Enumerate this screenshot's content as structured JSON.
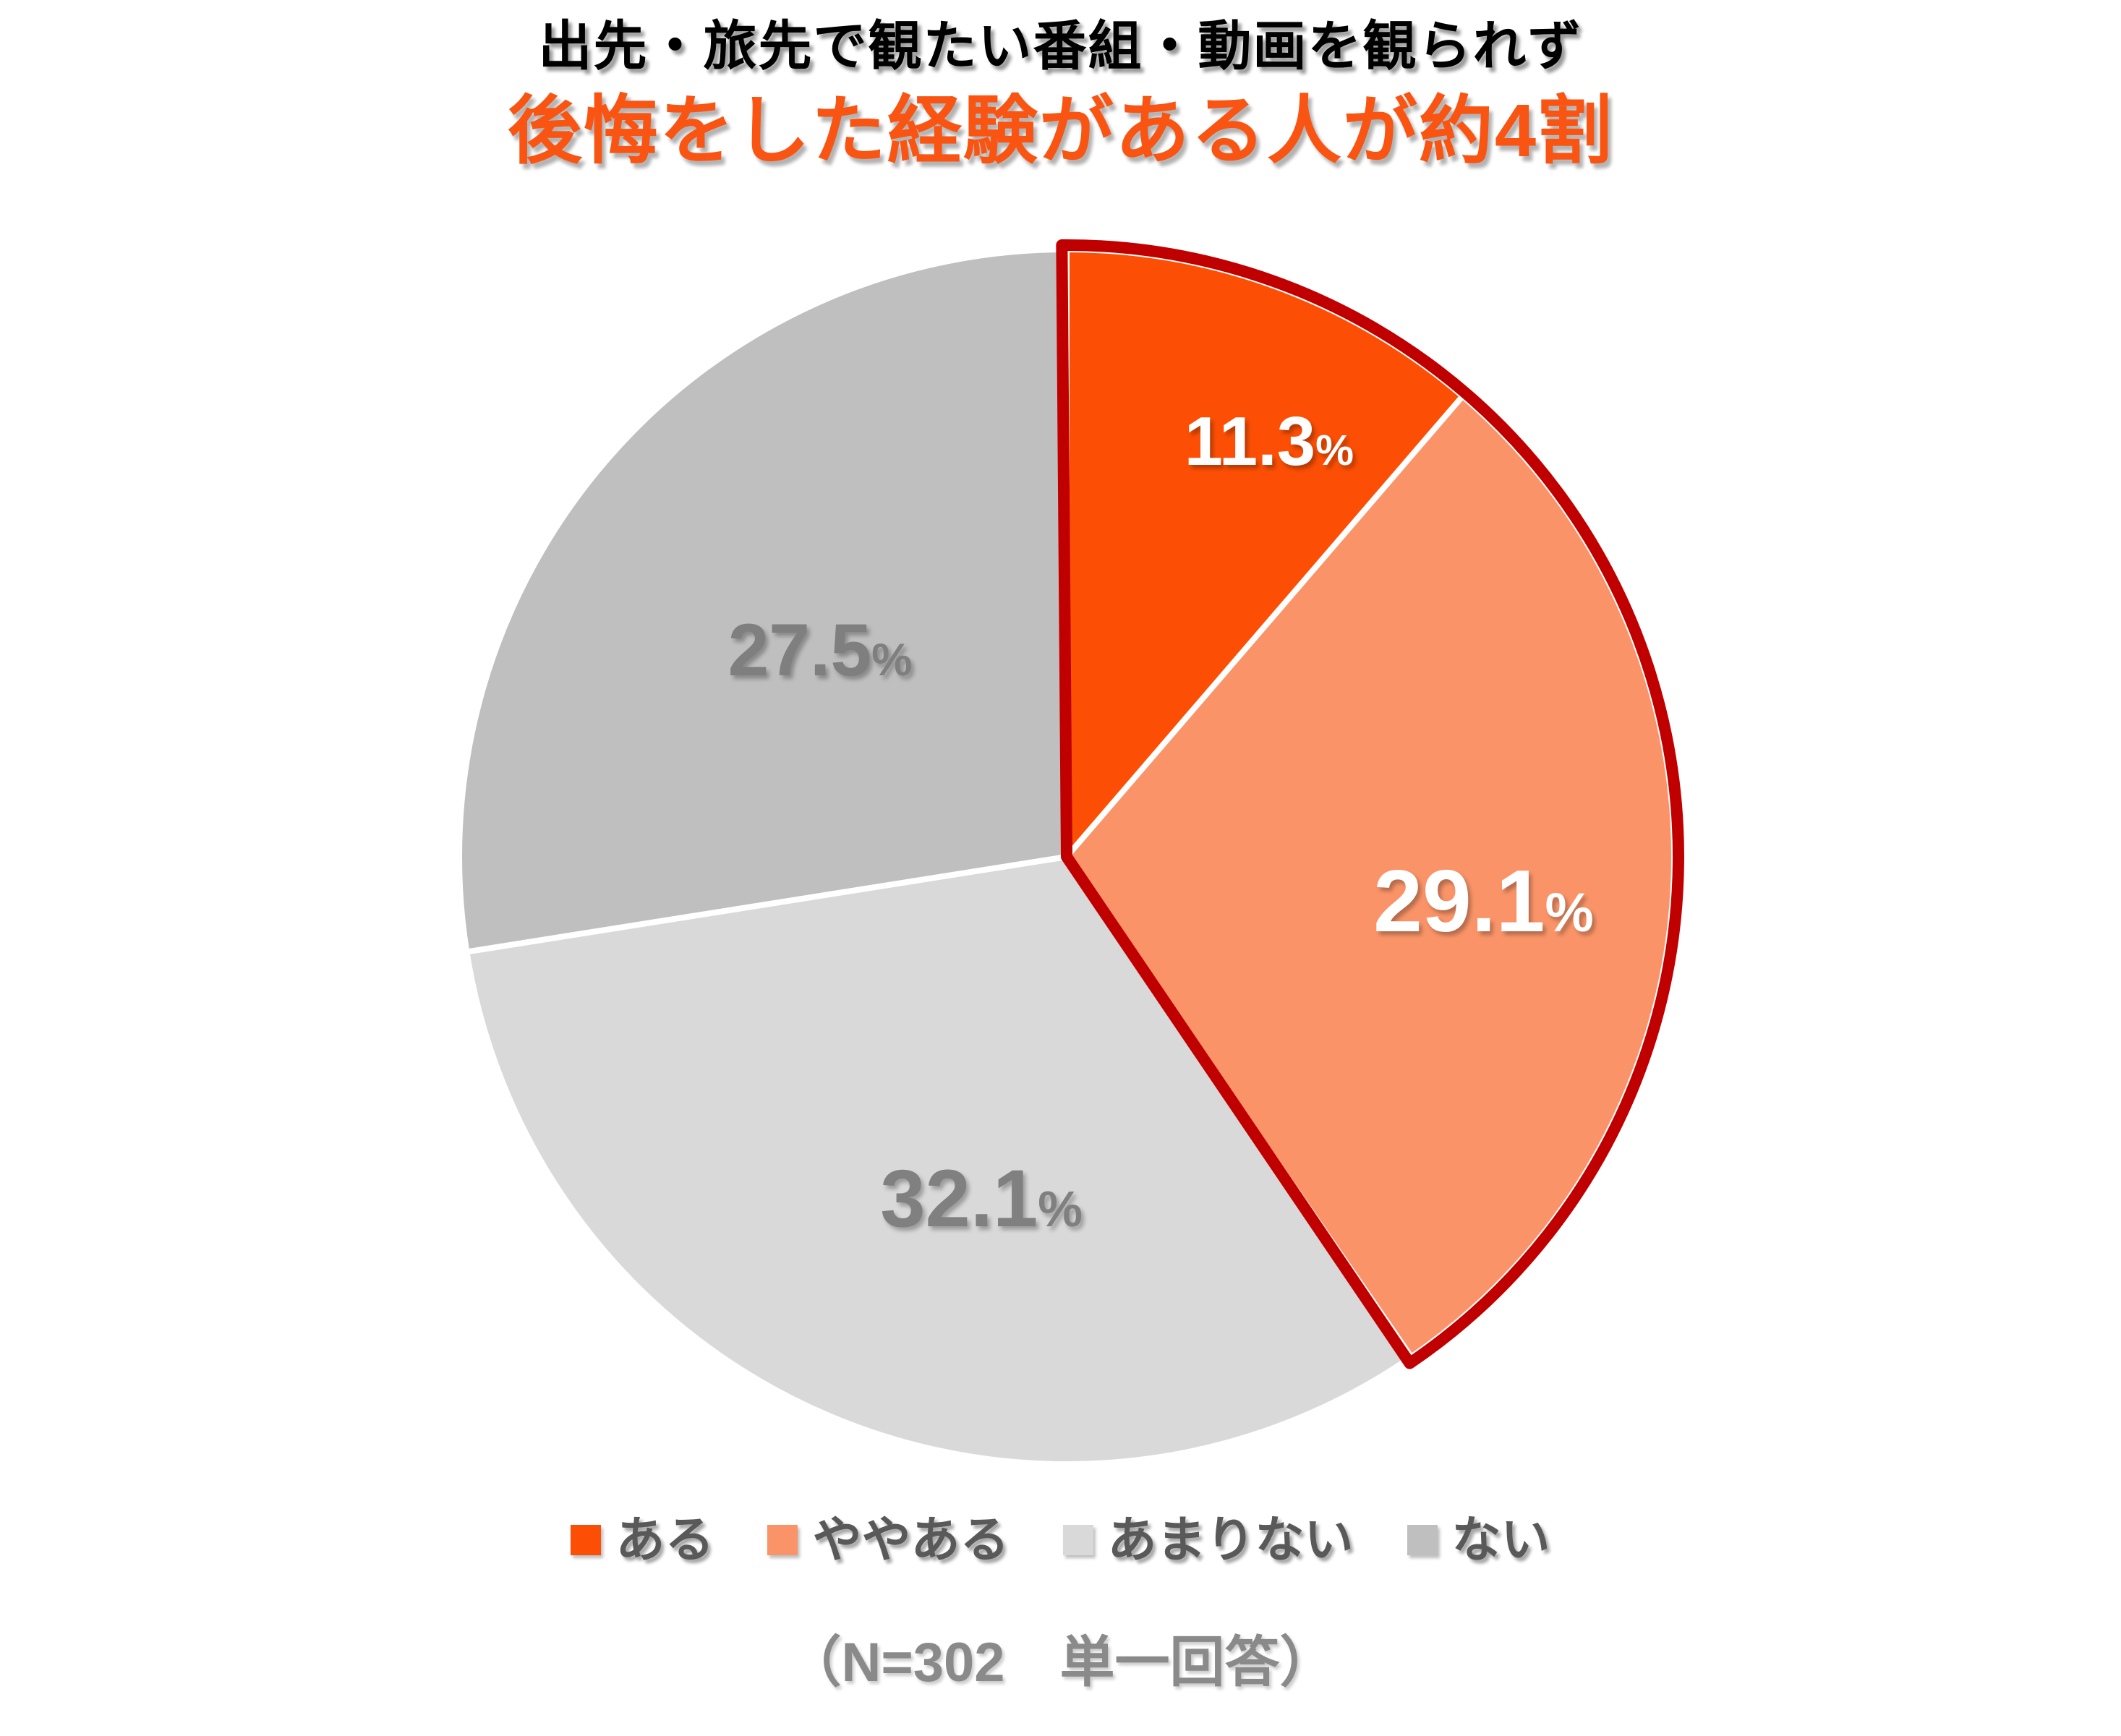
{
  "title": {
    "line1": "出先・旅先で観たい番組・動画を観られず",
    "line2": "後悔をした経験がある人が約4割",
    "accent_color": "#F95412"
  },
  "chart_data": {
    "type": "pie",
    "title": "出先・旅先で観たい番組・動画を観られず 後悔をした経験がある人が約4割",
    "unit": "%",
    "start_angle_deg": 0,
    "direction": "clockwise",
    "slices": [
      {
        "label": "ある",
        "value": 11.3,
        "color": "#FC4F05",
        "label_color": "#FFFFFF",
        "label_layout": {
          "angle": 26,
          "r": 0.76,
          "size": 96
        }
      },
      {
        "label": "ややある",
        "value": 29.1,
        "color": "#FA9468",
        "label_color": "#FFFFFF",
        "label_layout": {
          "angle": 96,
          "r": 0.69,
          "size": 122
        }
      },
      {
        "label": "あまりない",
        "value": 32.1,
        "color": "#D9D9D9",
        "label_color": "#808080",
        "label_layout": {
          "angle": 194,
          "r": 0.58,
          "size": 112
        }
      },
      {
        "label": "ない",
        "value": 27.5,
        "color": "#BFBFBF",
        "label_color": "#7F7F7F",
        "label_layout": {
          "angle": 310,
          "r": 0.53,
          "size": 102
        }
      }
    ],
    "emphasis_outline": {
      "covers_slices": [
        "ある",
        "ややある"
      ],
      "color": "#C00000"
    },
    "separator_color": "#FFFFFF",
    "legend_position": "bottom"
  },
  "footer": {
    "note": "（N=302　単一回答）"
  }
}
